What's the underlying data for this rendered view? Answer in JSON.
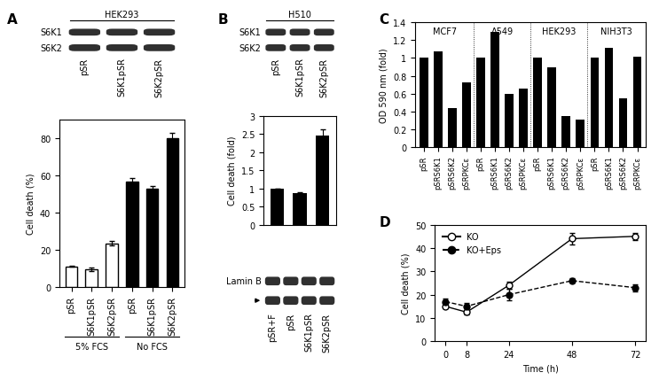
{
  "panel_letters": [
    "A",
    "B",
    "C",
    "D"
  ],
  "blots": [
    {
      "title": "HEK293",
      "rows": [
        "S6K1",
        "S6K2"
      ],
      "lanes": [
        "pSR",
        "S6K1pSR",
        "S6K2pSR"
      ]
    },
    {
      "title": "H510",
      "rows": [
        "S6K1",
        "S6K2"
      ],
      "lanes": [
        "pSR",
        "S6K1pSR",
        "S6K2pSR"
      ]
    },
    {
      "rows": [
        "Lamin B",
        null
      ],
      "lanes": [
        "pSR+F",
        "pSR",
        "S6K1pSR",
        "S6K2pSR"
      ]
    }
  ],
  "chart_data": [
    {
      "type": "bar",
      "ylabel": "Cell death (%)",
      "categories": [
        "pSR",
        "S6K1pSR",
        "S6K2pSR",
        "pSR",
        "S6K1pSR",
        "S6K2pSR"
      ],
      "series": [
        {
          "name": "5% FCS",
          "color": "white",
          "values": [
            11,
            9.5,
            23.5,
            null,
            null,
            null
          ],
          "errors": [
            0.3,
            0.8,
            1.0,
            null,
            null,
            null
          ]
        },
        {
          "name": "No FCS",
          "color": "black",
          "values": [
            null,
            null,
            null,
            56.5,
            53,
            80
          ],
          "errors": [
            null,
            null,
            null,
            2.0,
            1.5,
            3.0
          ]
        }
      ],
      "ylim": [
        0,
        90
      ],
      "yticks": [
        0,
        20,
        40,
        60,
        80
      ]
    },
    {
      "type": "bar",
      "ylabel": "Cell death (fold)",
      "categories": [
        null,
        null,
        null
      ],
      "values": [
        1,
        0.87,
        2.45
      ],
      "errors": [
        0,
        0.03,
        0.18
      ],
      "color": "black",
      "ylim": [
        0,
        3
      ],
      "yticks": [
        0,
        0.5,
        1,
        1.5,
        2,
        2.5,
        3
      ]
    },
    {
      "type": "bar",
      "ylabel": "OD 590 nm (fold)",
      "categories": [
        "pSR",
        "pSRS6K1",
        "pSRS6K2",
        "pSRPKCε",
        "pSR",
        "pSRS6K1",
        "pSRS6K2",
        "pSRPKCε",
        "pSR",
        "pSRS6K1",
        "pSRS6K2",
        "pSRPKCε",
        "pSR",
        "pSRS6K1",
        "pSRS6K2",
        "pSRPKCε"
      ],
      "series": [
        {
          "name": "MCF7",
          "color": "black",
          "values": [
            1,
            1.07,
            0.44,
            0.73,
            null,
            null,
            null,
            null,
            null,
            null,
            null,
            null,
            null,
            null,
            null,
            null
          ]
        },
        {
          "name": "A549",
          "color": "black",
          "values": [
            null,
            null,
            null,
            null,
            1,
            1.29,
            0.6,
            0.66,
            null,
            null,
            null,
            null,
            null,
            null,
            null,
            null
          ]
        },
        {
          "name": "HEK293",
          "color": "black",
          "values": [
            null,
            null,
            null,
            null,
            null,
            null,
            null,
            null,
            1,
            0.9,
            0.35,
            0.31,
            null,
            null,
            null,
            null
          ]
        },
        {
          "name": "NIH3T3",
          "color": "black",
          "values": [
            null,
            null,
            null,
            null,
            null,
            null,
            null,
            null,
            null,
            null,
            null,
            null,
            1,
            1.11,
            0.55,
            1.01
          ]
        }
      ],
      "ylim": [
        0,
        1.4
      ],
      "yticks": [
        0,
        0.2,
        0.4,
        0.6,
        0.8,
        1,
        1.2,
        1.4
      ]
    },
    {
      "type": "line",
      "xlabel": "Time (h)",
      "ylabel": "Cell death (%)",
      "x": [
        0,
        8,
        24,
        48,
        72
      ],
      "series": [
        {
          "name": "KO",
          "color": "black",
          "marker": "hollow_circle",
          "line_style": "solid",
          "values": [
            15,
            12.5,
            24,
            44,
            45
          ],
          "errors": [
            1.0,
            0.8,
            1.5,
            2.5,
            1.5
          ]
        },
        {
          "name": "KO+Eps",
          "color": "black",
          "marker": "circle",
          "line_style": "dashed",
          "values": [
            17,
            15,
            20,
            26,
            23
          ],
          "errors": [
            1.5,
            1.5,
            2.5,
            1.0,
            1.5
          ]
        }
      ],
      "xlim": [
        -4,
        76
      ],
      "xticks": [
        0,
        8,
        24,
        48,
        72
      ],
      "ylim": [
        0,
        50
      ],
      "yticks": [
        0,
        10,
        20,
        30,
        40,
        50
      ],
      "legend": "upper left"
    }
  ]
}
